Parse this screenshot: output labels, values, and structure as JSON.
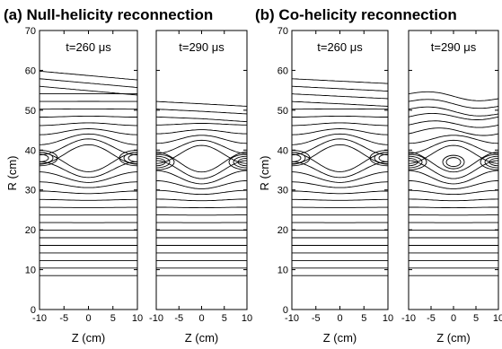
{
  "titles": {
    "left": "(a) Null-helicity reconnection",
    "right": "(b) Co-helicity reconnection"
  },
  "axes": {
    "ylabel": "R (cm)",
    "xlabel": "Z (cm)",
    "xticks": [
      "-10",
      "-5",
      "0",
      "5",
      "10"
    ],
    "yticks": [
      "0",
      "10",
      "20",
      "30",
      "40",
      "50",
      "60",
      "70"
    ],
    "xlim": [
      -10,
      10
    ],
    "ylim": [
      0,
      70
    ]
  },
  "chart_data": [
    {
      "type": "contour",
      "group": "(a) Null-helicity reconnection",
      "time_label": "t=260 μs",
      "boundary_top_R": 61,
      "x_point_R": 38,
      "xlabel": "Z (cm)",
      "ylabel": "R (cm)",
      "xlim": [
        -10,
        10
      ],
      "ylim": [
        0,
        70
      ]
    },
    {
      "type": "contour",
      "group": "(a) Null-helicity reconnection",
      "time_label": "t=290 μs",
      "boundary_top_R": 54,
      "x_point_R": 37,
      "xlabel": "Z (cm)",
      "xlim": [
        -10,
        10
      ],
      "ylim": [
        0,
        70
      ]
    },
    {
      "type": "contour",
      "group": "(b) Co-helicity reconnection",
      "time_label": "t=260 μs",
      "boundary_top_R": 58,
      "x_point_R": 38,
      "xlabel": "Z (cm)",
      "ylabel": "R (cm)",
      "xlim": [
        -10,
        10
      ],
      "ylim": [
        0,
        70
      ]
    },
    {
      "type": "contour",
      "group": "(b) Co-helicity reconnection",
      "time_label": "t=290 μs",
      "boundary_top_R": 55,
      "x_point_R": 37,
      "o_point_R": 37,
      "xlabel": "Z (cm)",
      "xlim": [
        -10,
        10
      ],
      "ylim": [
        0,
        70
      ]
    }
  ]
}
